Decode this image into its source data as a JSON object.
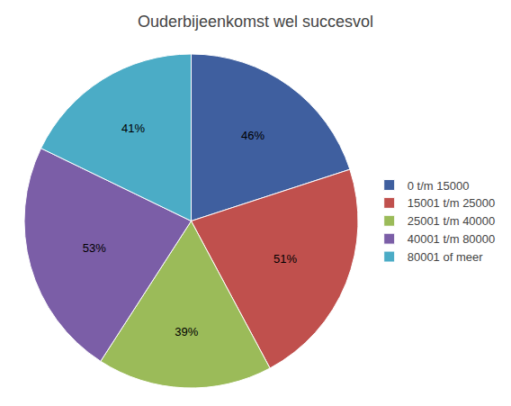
{
  "chart_data": {
    "type": "pie",
    "title": "Ouderbijeenkomst wel succesvol",
    "categories": [
      "0 t/m 15000",
      "15001 t/m 25000",
      "25001 t/m 40000",
      "40001 t/m 80000",
      "80001 of meer"
    ],
    "values": [
      46,
      51,
      39,
      53,
      41
    ],
    "value_labels": [
      "46%",
      "51%",
      "39%",
      "53%",
      "41%"
    ],
    "colors": [
      "#3f5f9f",
      "#c0504d",
      "#9bbb59",
      "#7b5ea7",
      "#4bacc6"
    ],
    "data_labels": true,
    "legend": "right"
  }
}
